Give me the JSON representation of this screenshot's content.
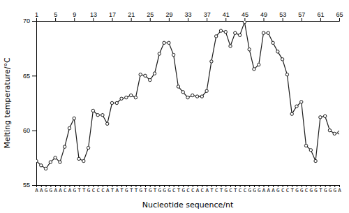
{
  "chart_data": {
    "type": "line",
    "xlabel": "Nucleotide sequence/nt",
    "ylabel": "Melting temperature/°C",
    "x": [
      1,
      2,
      3,
      4,
      5,
      6,
      7,
      8,
      9,
      10,
      11,
      12,
      13,
      14,
      15,
      16,
      17,
      18,
      19,
      20,
      21,
      22,
      23,
      24,
      25,
      26,
      27,
      28,
      29,
      30,
      31,
      32,
      33,
      34,
      35,
      36,
      37,
      38,
      39,
      40,
      41,
      42,
      43,
      44,
      45,
      46,
      47,
      48,
      49,
      50,
      51,
      52,
      53,
      54,
      55,
      56,
      57,
      58,
      59,
      60,
      61,
      62,
      63,
      64,
      65
    ],
    "values": [
      57.2,
      56.8,
      56.5,
      57.1,
      57.5,
      57.1,
      58.5,
      60.2,
      61.1,
      57.4,
      57.2,
      58.4,
      61.8,
      61.4,
      61.4,
      60.6,
      62.5,
      62.5,
      62.9,
      63.0,
      63.2,
      63.0,
      65.1,
      65.0,
      64.6,
      65.2,
      67.0,
      68.0,
      68.0,
      66.9,
      64.0,
      63.5,
      63.0,
      63.2,
      63.1,
      63.1,
      63.6,
      66.3,
      68.6,
      69.1,
      69.0,
      67.7,
      68.9,
      68.7,
      69.9,
      67.4,
      65.6,
      66.0,
      68.9,
      68.9,
      68.0,
      67.2,
      66.5,
      65.1,
      61.5,
      62.2,
      62.6,
      58.6,
      58.2,
      57.2,
      61.2,
      61.3,
      60.0,
      59.7,
      59.8
    ],
    "color": "#1a1a1a",
    "marker": "circle",
    "xlim": [
      1,
      65
    ],
    "xticks": [
      {
        "value": 1,
        "label": "A"
      },
      {
        "value": 2,
        "label": "A"
      },
      {
        "value": 3,
        "label": "G"
      },
      {
        "value": 4,
        "label": "G"
      },
      {
        "value": 5,
        "label": "A"
      },
      {
        "value": 6,
        "label": "A"
      },
      {
        "value": 7,
        "label": "C"
      },
      {
        "value": 8,
        "label": "A"
      },
      {
        "value": 9,
        "label": "G"
      },
      {
        "value": 10,
        "label": "T"
      },
      {
        "value": 11,
        "label": "T"
      },
      {
        "value": 12,
        "label": "G"
      },
      {
        "value": 13,
        "label": "C"
      },
      {
        "value": 14,
        "label": "C"
      },
      {
        "value": 15,
        "label": "C"
      },
      {
        "value": 16,
        "label": "A"
      },
      {
        "value": 17,
        "label": "T"
      },
      {
        "value": 18,
        "label": "A"
      },
      {
        "value": 19,
        "label": "T"
      },
      {
        "value": 20,
        "label": "G"
      },
      {
        "value": 21,
        "label": "T"
      },
      {
        "value": 22,
        "label": "T"
      },
      {
        "value": 23,
        "label": "G"
      },
      {
        "value": 24,
        "label": "T"
      },
      {
        "value": 25,
        "label": "G"
      },
      {
        "value": 26,
        "label": "T"
      },
      {
        "value": 27,
        "label": "G"
      },
      {
        "value": 28,
        "label": "G"
      },
      {
        "value": 29,
        "label": "G"
      },
      {
        "value": 30,
        "label": "C"
      },
      {
        "value": 31,
        "label": "T"
      },
      {
        "value": 32,
        "label": "G"
      },
      {
        "value": 33,
        "label": "C"
      },
      {
        "value": 34,
        "label": "C"
      },
      {
        "value": 35,
        "label": "A"
      },
      {
        "value": 36,
        "label": "C"
      },
      {
        "value": 37,
        "label": "A"
      },
      {
        "value": 38,
        "label": "T"
      },
      {
        "value": 39,
        "label": "C"
      },
      {
        "value": 40,
        "label": "T"
      },
      {
        "value": 41,
        "label": "G"
      },
      {
        "value": 42,
        "label": "C"
      },
      {
        "value": 43,
        "label": "T"
      },
      {
        "value": 44,
        "label": "C"
      },
      {
        "value": 45,
        "label": "C"
      },
      {
        "value": 46,
        "label": "G"
      },
      {
        "value": 47,
        "label": "G"
      },
      {
        "value": 48,
        "label": "G"
      },
      {
        "value": 49,
        "label": "A"
      },
      {
        "value": 50,
        "label": "A"
      },
      {
        "value": 51,
        "label": "A"
      },
      {
        "value": 52,
        "label": "G"
      },
      {
        "value": 53,
        "label": "C"
      },
      {
        "value": 54,
        "label": "C"
      },
      {
        "value": 55,
        "label": "T"
      },
      {
        "value": 56,
        "label": "G"
      },
      {
        "value": 57,
        "label": "G"
      },
      {
        "value": 58,
        "label": "C"
      },
      {
        "value": 59,
        "label": "G"
      },
      {
        "value": 60,
        "label": "G"
      },
      {
        "value": 61,
        "label": "T"
      },
      {
        "value": 62,
        "label": "G"
      },
      {
        "value": 63,
        "label": "G"
      },
      {
        "value": 64,
        "label": "G"
      },
      {
        "value": 65,
        "label": "A"
      }
    ],
    "x2lim": [
      1,
      65
    ],
    "x2ticks": [
      1,
      5,
      9,
      13,
      17,
      21,
      25,
      29,
      33,
      37,
      41,
      45,
      49,
      53,
      57,
      61,
      65
    ],
    "ylim": [
      55,
      70
    ],
    "yticks": [
      55,
      60,
      65,
      70
    ]
  }
}
